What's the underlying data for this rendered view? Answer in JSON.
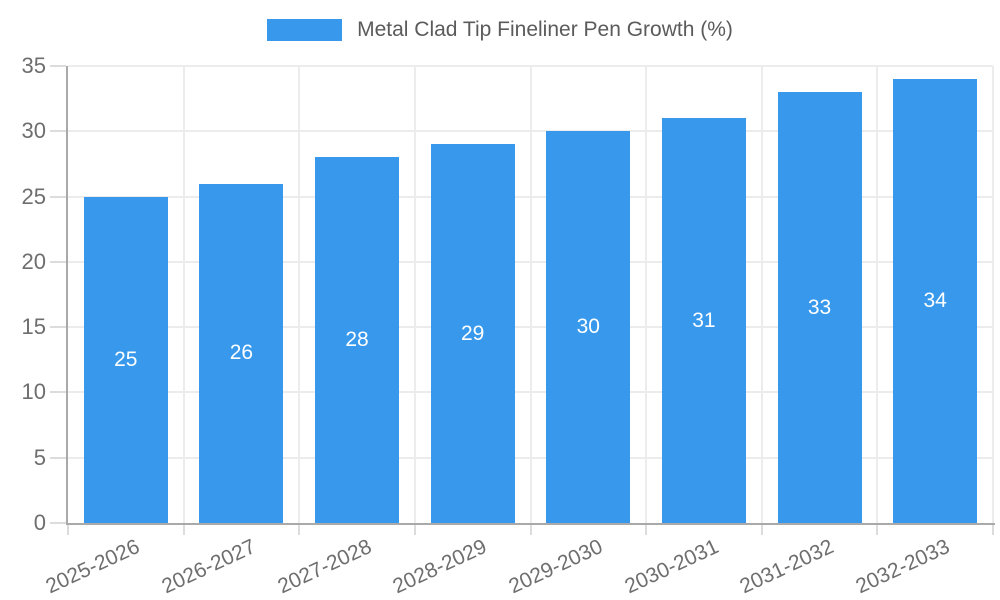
{
  "chart_data": {
    "type": "bar",
    "title": "Metal Clad Tip Fineliner Pen Growth (%)",
    "legend": {
      "label": "Metal Clad Tip Fineliner Pen Growth (%)",
      "position": "top-center"
    },
    "categories": [
      "2025-2026",
      "2026-2027",
      "2027-2028",
      "2028-2029",
      "2029-2030",
      "2030-2031",
      "2031-2032",
      "2032-2033"
    ],
    "series": [
      {
        "name": "Metal Clad Tip Fineliner Pen Growth (%)",
        "values": [
          25,
          26,
          28,
          29,
          30,
          31,
          33,
          34
        ]
      }
    ],
    "value_labels": [
      "25",
      "26",
      "28",
      "29",
      "30",
      "31",
      "33",
      "34"
    ],
    "xlabel": "",
    "ylabel": "",
    "ylim": [
      0,
      35
    ],
    "ytick_step": 5,
    "ytick_labels": [
      "0",
      "5",
      "10",
      "15",
      "20",
      "25",
      "30",
      "35"
    ],
    "grid": true,
    "x_labels_rotation_deg": -25,
    "colors": {
      "bar": "#3899EC",
      "value_label": "#FFFFFF",
      "axis": "#A9A9A9",
      "gridline": "#ECECEC",
      "tick": "#DCDCDC",
      "tick_label": "#6E6E6E",
      "legend_text": "#5B5B5B"
    }
  }
}
